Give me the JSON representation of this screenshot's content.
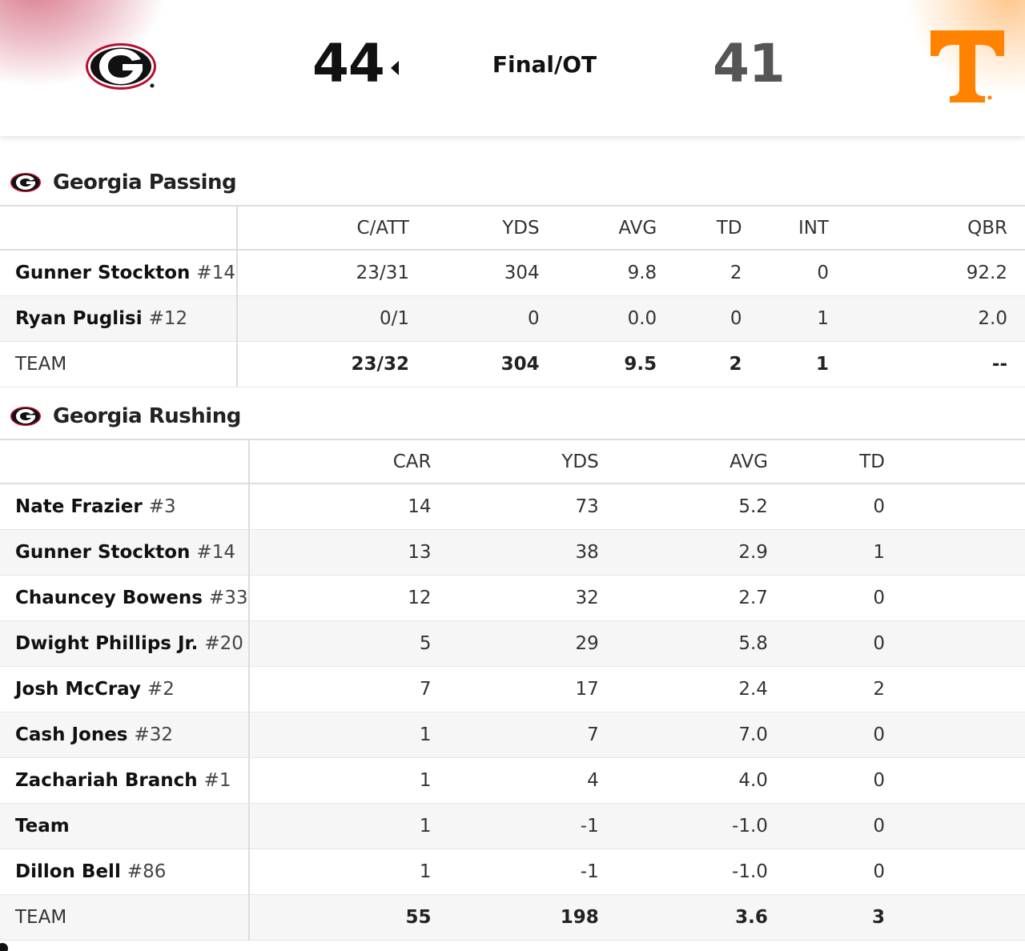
{
  "scoreboard": {
    "home_score": "44",
    "away_score": "41",
    "status": "Final/OT",
    "home_logo_icon": "georgia-g-logo",
    "away_logo_icon": "tennessee-t-logo",
    "colors": {
      "georgia_red": "#BA0C2F",
      "tennessee_orange": "#FF8200"
    }
  },
  "passing": {
    "title": "Georgia Passing",
    "columns": [
      "C/ATT",
      "YDS",
      "AVG",
      "TD",
      "INT",
      "QBR"
    ],
    "rows": [
      {
        "name": "Gunner Stockton",
        "number": "#14",
        "cells": [
          "23/31",
          "304",
          "9.8",
          "2",
          "0",
          "92.2"
        ]
      },
      {
        "name": "Ryan Puglisi",
        "number": "#12",
        "cells": [
          "0/1",
          "0",
          "0.0",
          "0",
          "1",
          "2.0"
        ]
      }
    ],
    "total": {
      "name": "TEAM",
      "cells": [
        "23/32",
        "304",
        "9.5",
        "2",
        "1",
        "--"
      ]
    }
  },
  "rushing": {
    "title": "Georgia Rushing",
    "columns": [
      "CAR",
      "YDS",
      "AVG",
      "TD"
    ],
    "rows": [
      {
        "name": "Nate Frazier",
        "number": "#3",
        "cells": [
          "14",
          "73",
          "5.2",
          "0"
        ]
      },
      {
        "name": "Gunner Stockton",
        "number": "#14",
        "cells": [
          "13",
          "38",
          "2.9",
          "1"
        ]
      },
      {
        "name": "Chauncey Bowens",
        "number": "#33",
        "cells": [
          "12",
          "32",
          "2.7",
          "0"
        ]
      },
      {
        "name": "Dwight Phillips Jr.",
        "number": "#20",
        "cells": [
          "5",
          "29",
          "5.8",
          "0"
        ]
      },
      {
        "name": "Josh McCray",
        "number": "#2",
        "cells": [
          "7",
          "17",
          "2.4",
          "2"
        ]
      },
      {
        "name": "Cash Jones",
        "number": "#32",
        "cells": [
          "1",
          "7",
          "7.0",
          "0"
        ]
      },
      {
        "name": "Zachariah Branch",
        "number": "#1",
        "cells": [
          "1",
          "4",
          "4.0",
          "0"
        ]
      },
      {
        "name": "Team",
        "number": "",
        "cells": [
          "1",
          "-1",
          "-1.0",
          "0"
        ]
      },
      {
        "name": "Dillon Bell",
        "number": "#86",
        "cells": [
          "1",
          "-1",
          "-1.0",
          "0"
        ]
      }
    ],
    "total": {
      "name": "TEAM",
      "cells": [
        "55",
        "198",
        "3.6",
        "3"
      ]
    }
  }
}
